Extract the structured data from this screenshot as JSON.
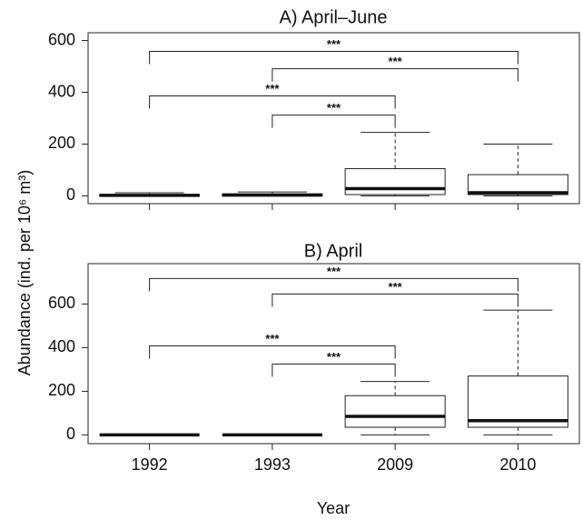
{
  "chart_data": [
    {
      "type": "box",
      "title": "A)  April–June",
      "categories": [
        "1992",
        "1993",
        "2009",
        "2010"
      ],
      "boxes": [
        {
          "min": 0,
          "q1": 0,
          "median": 2,
          "q3": 5,
          "max": 12
        },
        {
          "min": 0,
          "q1": 0,
          "median": 3,
          "q3": 8,
          "max": 15
        },
        {
          "min": 0,
          "q1": 5,
          "median": 28,
          "q3": 105,
          "max": 245
        },
        {
          "min": 0,
          "q1": 5,
          "median": 12,
          "q3": 82,
          "max": 200
        }
      ],
      "ylim": [
        -30,
        630
      ],
      "yticks": [
        0,
        200,
        400,
        600
      ],
      "comparisons": [
        {
          "between": [
            "1992",
            "2010"
          ],
          "y": 558,
          "label": "***"
        },
        {
          "between": [
            "1993",
            "2010"
          ],
          "y": 491,
          "label": "***"
        },
        {
          "between": [
            "1992",
            "2009"
          ],
          "y": 386,
          "label": "***"
        },
        {
          "between": [
            "1993",
            "2009"
          ],
          "y": 312,
          "label": "***"
        }
      ]
    },
    {
      "type": "box",
      "title": "B)  April",
      "categories": [
        "1992",
        "1993",
        "2009",
        "2010"
      ],
      "boxes": [
        {
          "min": 0,
          "q1": 0,
          "median": 0,
          "q3": 0,
          "max": 0
        },
        {
          "min": 0,
          "q1": 0,
          "median": 0,
          "q3": 0,
          "max": 0
        },
        {
          "min": 0,
          "q1": 35,
          "median": 85,
          "q3": 180,
          "max": 245
        },
        {
          "min": 0,
          "q1": 35,
          "median": 65,
          "q3": 270,
          "max": 572
        }
      ],
      "ylim": [
        -40,
        785
      ],
      "yticks": [
        0,
        200,
        400,
        600
      ],
      "x_label": "Year",
      "y_label": "Abundance (ind. per 10⁶ m³)",
      "comparisons": [
        {
          "between": [
            "1992",
            "2010"
          ],
          "y": 717,
          "label": "***"
        },
        {
          "between": [
            "1993",
            "2010"
          ],
          "y": 646,
          "label": "***"
        },
        {
          "between": [
            "1992",
            "2009"
          ],
          "y": 408,
          "label": "***"
        },
        {
          "between": [
            "1993",
            "2009"
          ],
          "y": 325,
          "label": "***"
        }
      ]
    }
  ]
}
